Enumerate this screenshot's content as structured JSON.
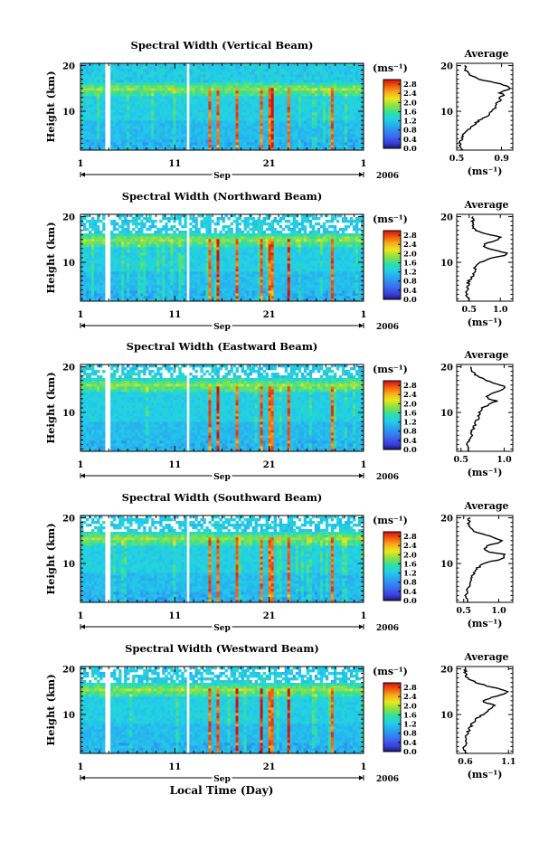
{
  "figure": {
    "xlabel": "Local Time (Day)",
    "month_label": "Sep",
    "year_label": "2006",
    "height_label": "Height (km)",
    "colorbar_unit": "(ms⁻¹)",
    "average_title": "Average",
    "average_unit": "(ms⁻¹)"
  },
  "chart_data": [
    {
      "type": "heatmap",
      "title": "Spectral Width (Vertical Beam)",
      "ylabel": "Height (km)",
      "x_ticks": [
        "1",
        "11",
        "21",
        "1"
      ],
      "xlim_day": [
        1,
        31
      ],
      "y_ticks": [
        "20",
        "10"
      ],
      "ylim_km": [
        1.5,
        20.5
      ],
      "colorbar": {
        "unit": "(ms⁻¹)",
        "ticks": [
          "2.8",
          "2.4",
          "2.0",
          "1.6",
          "1.2",
          "0.8",
          "0.4",
          "0.0"
        ],
        "range": [
          0,
          3.0
        ]
      },
      "data_gaps_day": [
        [
          3.7,
          4.2
        ],
        [
          12.3,
          12.5
        ],
        [
          13.0,
          13.2
        ]
      ],
      "layer_height_km": 15,
      "avg_profile": {
        "title": "Average",
        "x_ticks": [
          "0.5",
          "0.9"
        ],
        "xlim": [
          0.5,
          1.0
        ],
        "y_ticks": [
          "20",
          "10"
        ],
        "heights_km": [
          1.5,
          3,
          4,
          5,
          6,
          7,
          8,
          9,
          10,
          11,
          12,
          12.5,
          13,
          13.5,
          14,
          14.5,
          15,
          15.5,
          16,
          16.5,
          17,
          18,
          19,
          20
        ],
        "values": [
          0.55,
          0.52,
          0.55,
          0.56,
          0.6,
          0.65,
          0.7,
          0.77,
          0.82,
          0.85,
          0.86,
          0.9,
          0.87,
          0.92,
          0.89,
          0.93,
          0.97,
          0.95,
          0.88,
          0.8,
          0.7,
          0.62,
          0.58,
          0.57
        ]
      }
    },
    {
      "type": "heatmap",
      "title": "Spectral Width (Northward Beam)",
      "ylabel": "Height (km)",
      "x_ticks": [
        "1",
        "11",
        "21",
        "1"
      ],
      "xlim_day": [
        1,
        31
      ],
      "y_ticks": [
        "20",
        "10"
      ],
      "ylim_km": [
        1.5,
        20.5
      ],
      "colorbar": {
        "unit": "(ms⁻¹)",
        "ticks": [
          "2.8",
          "2.4",
          "2.0",
          "1.6",
          "1.2",
          "0.8",
          "0.4",
          "0.0"
        ],
        "range": [
          0,
          3.0
        ]
      },
      "data_gaps_day": [
        [
          3.7,
          4.2
        ],
        [
          12.3,
          12.5
        ],
        [
          13.0,
          13.2
        ]
      ],
      "layer_height_km": 15,
      "avg_profile": {
        "title": "Average",
        "x_ticks": [
          "0.5",
          "1.0"
        ],
        "xlim": [
          0.3,
          1.2
        ],
        "y_ticks": [
          "20",
          "10"
        ],
        "heights_km": [
          1.5,
          3,
          4,
          5,
          6,
          7,
          8,
          9,
          10,
          11,
          11.5,
          12,
          13,
          13.5,
          14,
          15,
          15.5,
          16,
          17,
          18,
          19,
          20
        ],
        "values": [
          0.5,
          0.45,
          0.47,
          0.48,
          0.5,
          0.55,
          0.58,
          0.6,
          0.68,
          0.88,
          1.05,
          1.1,
          0.82,
          0.72,
          0.75,
          0.95,
          1.02,
          0.82,
          0.6,
          0.55,
          0.56,
          0.57
        ]
      }
    },
    {
      "type": "heatmap",
      "title": "Spectral Width (Eastward Beam)",
      "ylabel": "Height (km)",
      "x_ticks": [
        "1",
        "11",
        "21",
        "1"
      ],
      "xlim_day": [
        1,
        31
      ],
      "y_ticks": [
        "20",
        "10"
      ],
      "ylim_km": [
        1.5,
        20.5
      ],
      "colorbar": {
        "unit": "(ms⁻¹)",
        "ticks": [
          "2.8",
          "2.4",
          "2.0",
          "1.6",
          "1.2",
          "0.8",
          "0.4",
          "0.0"
        ],
        "range": [
          0,
          3.0
        ]
      },
      "data_gaps_day": [
        [
          3.7,
          4.2
        ],
        [
          12.3,
          12.5
        ],
        [
          13.0,
          13.2
        ]
      ],
      "layer_height_km": 16,
      "avg_profile": {
        "title": "Average",
        "x_ticks": [
          "0.5",
          "1.0"
        ],
        "xlim": [
          0.45,
          1.1
        ],
        "y_ticks": [
          "20",
          "10"
        ],
        "heights_km": [
          1.5,
          3,
          4,
          5,
          6,
          7,
          8,
          9,
          10,
          11,
          12,
          12.5,
          13,
          13.5,
          14,
          15,
          15.5,
          16,
          17,
          18,
          19,
          20
        ],
        "values": [
          0.6,
          0.58,
          0.6,
          0.62,
          0.63,
          0.65,
          0.68,
          0.7,
          0.72,
          0.75,
          0.85,
          0.92,
          0.82,
          0.78,
          0.85,
          0.98,
          1.02,
          0.95,
          0.8,
          0.68,
          0.62,
          0.62
        ]
      }
    },
    {
      "type": "heatmap",
      "title": "Spectral Width (Southward Beam)",
      "ylabel": "Height (km)",
      "x_ticks": [
        "1",
        "11",
        "21",
        "1"
      ],
      "xlim_day": [
        1,
        31
      ],
      "y_ticks": [
        "20",
        "10"
      ],
      "ylim_km": [
        1.5,
        20.5
      ],
      "colorbar": {
        "unit": "(ms⁻¹)",
        "ticks": [
          "2.8",
          "2.4",
          "2.0",
          "1.6",
          "1.2",
          "0.8",
          "0.4",
          "0.0"
        ],
        "range": [
          0,
          3.0
        ]
      },
      "data_gaps_day": [
        [
          3.7,
          4.2
        ],
        [
          12.3,
          12.5
        ],
        [
          13.0,
          13.2
        ]
      ],
      "layer_height_km": 15.5,
      "avg_profile": {
        "title": "Average",
        "x_ticks": [
          "0.5",
          "1.0"
        ],
        "xlim": [
          0.4,
          1.2
        ],
        "y_ticks": [
          "20",
          "10"
        ],
        "heights_km": [
          1.5,
          3,
          4,
          5,
          6,
          7,
          8,
          9,
          10,
          10.5,
          11,
          12,
          12.5,
          13,
          14,
          14.5,
          15,
          16,
          17,
          18,
          19,
          20
        ],
        "values": [
          0.55,
          0.52,
          0.55,
          0.57,
          0.6,
          0.62,
          0.65,
          0.7,
          0.78,
          0.9,
          1.05,
          1.1,
          0.88,
          0.8,
          0.85,
          1.0,
          1.05,
          0.88,
          0.65,
          0.58,
          0.57,
          0.58
        ]
      }
    },
    {
      "type": "heatmap",
      "title": "Spectral Width (Westward Beam)",
      "ylabel": "Height (km)",
      "x_ticks": [
        "1",
        "11",
        "21",
        "1"
      ],
      "xlim_day": [
        1,
        31
      ],
      "y_ticks": [
        "20",
        "10"
      ],
      "ylim_km": [
        1.5,
        20.5
      ],
      "colorbar": {
        "unit": "(ms⁻¹)",
        "ticks": [
          "2.8",
          "2.4",
          "2.0",
          "1.6",
          "1.2",
          "0.8",
          "0.4",
          "0.0"
        ],
        "range": [
          0,
          3.0
        ]
      },
      "data_gaps_day": [
        [
          3.7,
          4.2
        ],
        [
          12.3,
          12.5
        ],
        [
          13.0,
          13.2
        ]
      ],
      "layer_height_km": 15.5,
      "avg_profile": {
        "title": "Average",
        "x_ticks": [
          "0.6",
          "1.1"
        ],
        "xlim": [
          0.5,
          1.15
        ],
        "y_ticks": [
          "20",
          "10"
        ],
        "heights_km": [
          1.5,
          3,
          4,
          5,
          6,
          7,
          8,
          9,
          10,
          11,
          12,
          12.5,
          13,
          14,
          14.5,
          15,
          15.5,
          16,
          17,
          18,
          19,
          20
        ],
        "values": [
          0.6,
          0.58,
          0.62,
          0.6,
          0.63,
          0.65,
          0.68,
          0.72,
          0.8,
          0.88,
          0.95,
          0.85,
          0.8,
          0.95,
          1.05,
          1.1,
          1.02,
          0.9,
          0.72,
          0.62,
          0.6,
          0.6
        ]
      }
    }
  ]
}
